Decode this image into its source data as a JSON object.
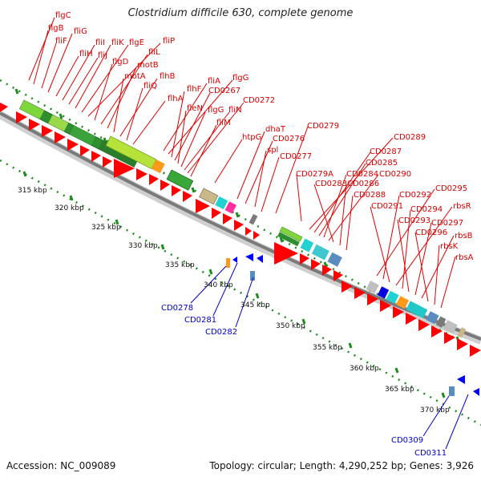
{
  "title": "Clostridium difficile 630, complete genome",
  "accession": "Accession: NC_009089",
  "summary": "Topology: circular; Length: 4,290,252 bp; Genes: 3,926",
  "colors": {
    "forward_label": "#d40000",
    "reverse_label": "#0000c8",
    "forward_gene": "#ff0000",
    "reverse_gene": "#0000ff",
    "backbone": "#8a8a8a",
    "tick": "#1e8c1e"
  },
  "scale_labels": [
    "315 kbp",
    "320 kbp",
    "325 kbp",
    "330 kbp",
    "335 kbp",
    "340 kbp",
    "345 kbp",
    "350 kbp",
    "355 kbp",
    "360 kbp",
    "365 kbp",
    "370 kbp"
  ],
  "forward_labels": [
    "flgC",
    "flgB",
    "fliF",
    "fliG",
    "fliH",
    "fliI",
    "fliJ",
    "fliK",
    "flgE",
    "fliP",
    "flgD",
    "fliL",
    "motB",
    "motA",
    "flhB",
    "fliQ",
    "flhA",
    "fliA",
    "flgG",
    "flhF",
    "CD0267",
    "fleN",
    "flgG",
    "fliN",
    "CD0272",
    "fliM",
    "htpG",
    "dhaT",
    "CD0276",
    "spl",
    "CD0277",
    "CD0279",
    "CD0279A",
    "CD0289",
    "CD0287",
    "CD0285",
    "CD0284",
    "CD0290",
    "CD0283",
    "CD0286",
    "CD0288",
    "CD0295",
    "CD0292",
    "CD0291",
    "rbsR",
    "CD0294",
    "CD0293",
    "CD0297",
    "rbsB",
    "CD0296",
    "rbsK",
    "rbsA"
  ],
  "reverse_labels": [
    "CD0278",
    "CD0281",
    "CD0282",
    "CD0309",
    "CD0311"
  ]
}
